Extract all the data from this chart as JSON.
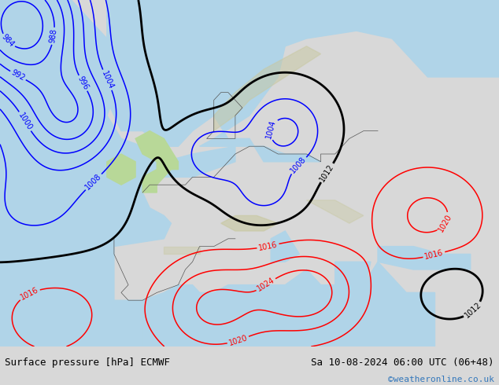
{
  "title_left": "Surface pressure [hPa] ECMWF",
  "title_right": "Sa 10-08-2024 06:00 UTC (06+48)",
  "copyright": "©weatheronline.co.uk",
  "bg_color_land": "#b8d898",
  "bg_color_sea": "#b0d4e8",
  "bg_color_mountain": "#c8c8a0",
  "bg_color_panel": "#d8d8d8",
  "text_color_main": "#000000",
  "text_color_copyright": "#3377bb",
  "font_size_title": 9.0,
  "font_size_copyright": 8.0,
  "figsize": [
    6.34,
    4.9
  ],
  "dpi": 100,
  "xlim": [
    -25,
    45
  ],
  "ylim": [
    30,
    75
  ],
  "pressure_levels_blue": [
    984,
    988,
    992,
    996,
    1000,
    1004,
    1008
  ],
  "pressure_levels_black": [
    1012
  ],
  "pressure_levels_red": [
    1016,
    1020,
    1024
  ],
  "label_fontsize": 7
}
